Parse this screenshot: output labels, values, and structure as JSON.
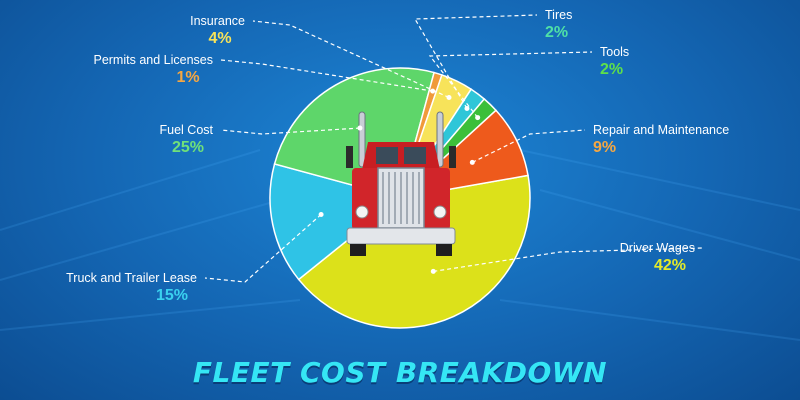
{
  "chart_data": {
    "type": "pie",
    "title": "FLEET COST BREAKDOWN",
    "slices": [
      {
        "label": "Driver Wages",
        "value": 42,
        "display": "42%",
        "color": "#dce11a",
        "pct_color": "#e3ea2a"
      },
      {
        "label": "Truck and Trailer Lease",
        "value": 15,
        "display": "15%",
        "color": "#2fc3e6",
        "pct_color": "#3ad1ef"
      },
      {
        "label": "Fuel Cost",
        "value": 25,
        "display": "25%",
        "color": "#5ed66a",
        "pct_color": "#6fe07a"
      },
      {
        "label": "Permits and Licenses",
        "value": 1,
        "display": "1%",
        "color": "#f09a3a",
        "pct_color": "#f5a742"
      },
      {
        "label": "Insurance",
        "value": 4,
        "display": "4%",
        "color": "#f7e35a",
        "pct_color": "#f7e35a"
      },
      {
        "label": "Tires",
        "value": 2,
        "display": "2%",
        "color": "#2fc6d8",
        "pct_color": "#4fe0a6"
      },
      {
        "label": "Tools",
        "value": 2,
        "display": "2%",
        "color": "#3cbf3a",
        "pct_color": "#5ee04a"
      },
      {
        "label": "Repair and Maintenance",
        "value": 9,
        "display": "9%",
        "color": "#ee5a1c",
        "pct_color": "#f5a742"
      }
    ],
    "legend": "none"
  }
}
